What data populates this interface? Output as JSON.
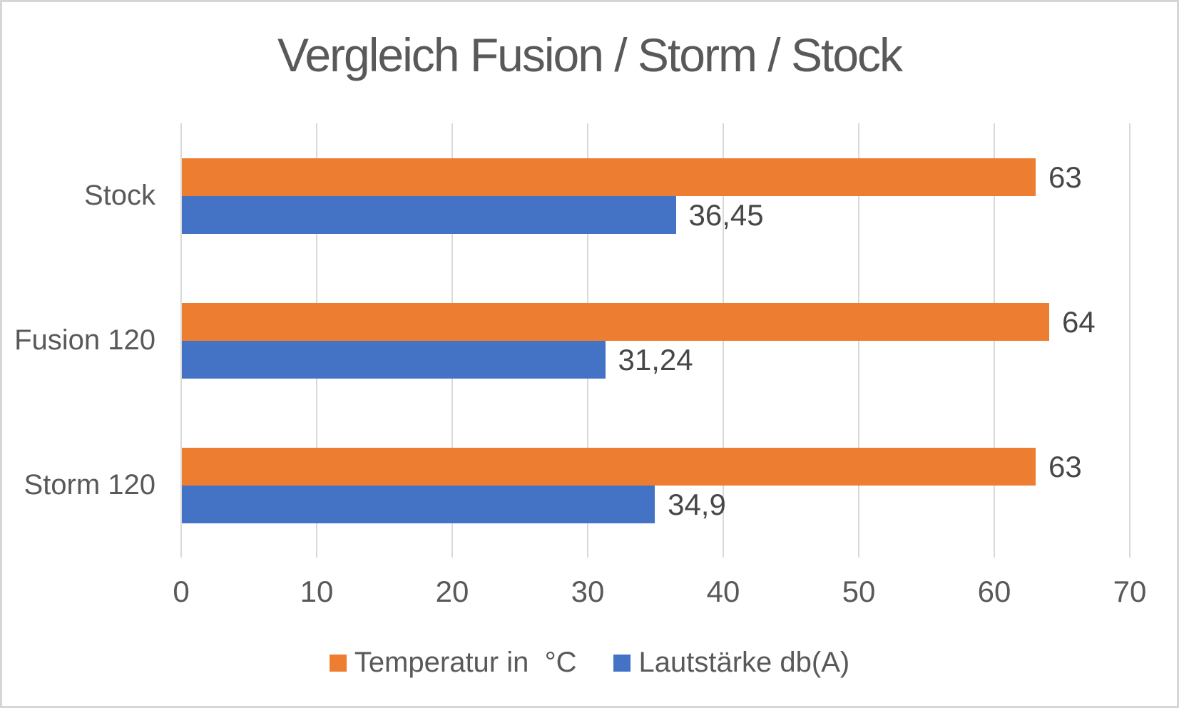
{
  "window": {
    "background": "#ffffff",
    "frame_border_color": "#d6d6d6"
  },
  "chart_data": {
    "type": "bar",
    "orientation": "horizontal",
    "title": "Vergleich Fusion / Storm / Stock",
    "categories": [
      "Stock",
      "Fusion 120",
      "Storm 120"
    ],
    "series": [
      {
        "name": "Temperatur in  °C",
        "color": "#ED7D31",
        "values": [
          63,
          64,
          63
        ],
        "value_labels": [
          "63",
          "64",
          "63"
        ]
      },
      {
        "name": "Lautstärke db(A)",
        "color": "#4472C4",
        "values": [
          36.45,
          31.24,
          34.9
        ],
        "value_labels": [
          "36,45",
          "31,24",
          "34,9"
        ]
      }
    ],
    "x_axis": {
      "min": 0,
      "max": 70,
      "tick_interval": 10,
      "tick_labels": [
        "0",
        "10",
        "20",
        "30",
        "40",
        "50",
        "60",
        "70"
      ]
    },
    "grid": true,
    "gridline_color": "#d9d9d9",
    "legend_position": "bottom",
    "title_color": "#595959",
    "axis_text_color": "#595959",
    "data_label_color": "#474747"
  }
}
